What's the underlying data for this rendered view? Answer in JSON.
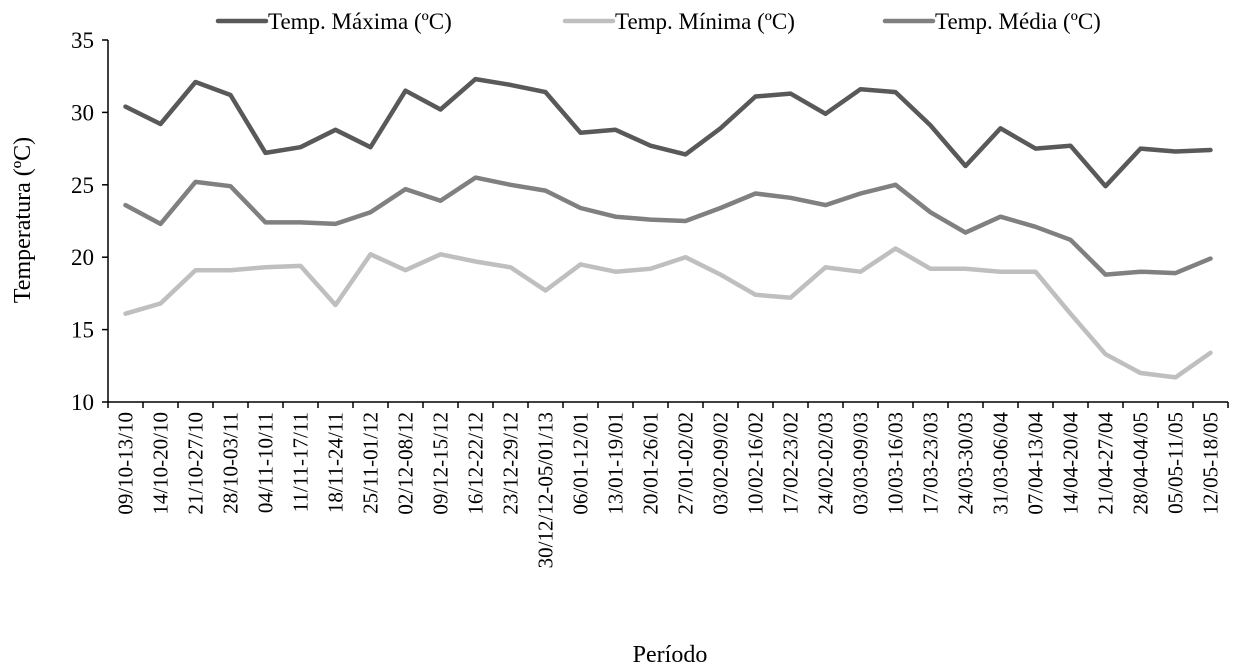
{
  "chart_data": {
    "type": "line",
    "xlabel": "Período",
    "ylabel": "Temperatura (ºC)",
    "ylim": [
      10,
      35
    ],
    "yticks": [
      10,
      15,
      20,
      25,
      30,
      35
    ],
    "grid": false,
    "legend_position": "top",
    "categories": [
      "09/10-13/10",
      "14/10-20/10",
      "21/10-27/10",
      "28/10-03/11",
      "04/11-10/11",
      "11/11-17/11",
      "18/11-24/11",
      "25/11-01/12",
      "02/12-08/12",
      "09/12-15/12",
      "16/12-22/12",
      "23/12-29/12",
      "30/12/12-05/01/13",
      "06/01-12/01",
      "13/01-19/01",
      "20/01-26/01",
      "27/01-02/02",
      "03/02-09/02",
      "10/02-16/02",
      "17/02-23/02",
      "24/02-02/03",
      "03/03-09/03",
      "10/03-16/03",
      "17/03-23/03",
      "24/03-30/03",
      "31/03-06/04",
      "07/04-13/04",
      "14/04-20/04",
      "21/04-27/04",
      "28/04-04/05",
      "05/05-11/05",
      "12/05-18/05"
    ],
    "series": [
      {
        "name": "Temp. Máxima (ºC)",
        "color": "#595959",
        "values": [
          30.4,
          29.2,
          32.1,
          31.2,
          27.2,
          27.6,
          28.8,
          27.6,
          31.5,
          30.2,
          32.3,
          31.9,
          31.4,
          28.6,
          28.8,
          27.7,
          27.1,
          28.9,
          31.1,
          31.3,
          29.9,
          31.6,
          31.4,
          29.1,
          26.3,
          28.9,
          27.5,
          27.7,
          24.9,
          27.5,
          27.3,
          27.4
        ]
      },
      {
        "name": "Temp. Mínima (ºC)",
        "color": "#bfbfbf",
        "values": [
          16.1,
          16.8,
          19.1,
          19.1,
          19.3,
          19.4,
          16.7,
          20.2,
          19.1,
          20.2,
          19.7,
          19.3,
          17.7,
          19.5,
          19.0,
          19.2,
          20.0,
          18.8,
          17.4,
          17.2,
          19.3,
          19.0,
          20.6,
          19.2,
          19.2,
          19.0,
          19.0,
          16.1,
          13.3,
          12.0,
          11.7,
          13.4
        ]
      },
      {
        "name": "Temp. Média (ºC)",
        "color": "#808080",
        "values": [
          23.6,
          22.3,
          25.2,
          24.9,
          22.4,
          22.4,
          22.3,
          23.1,
          24.7,
          23.9,
          25.5,
          25.0,
          24.6,
          23.4,
          22.8,
          22.6,
          22.5,
          23.4,
          24.4,
          24.1,
          23.6,
          24.4,
          25.0,
          23.1,
          21.7,
          22.8,
          22.1,
          21.2,
          18.8,
          19.0,
          18.9,
          19.9
        ]
      }
    ]
  }
}
